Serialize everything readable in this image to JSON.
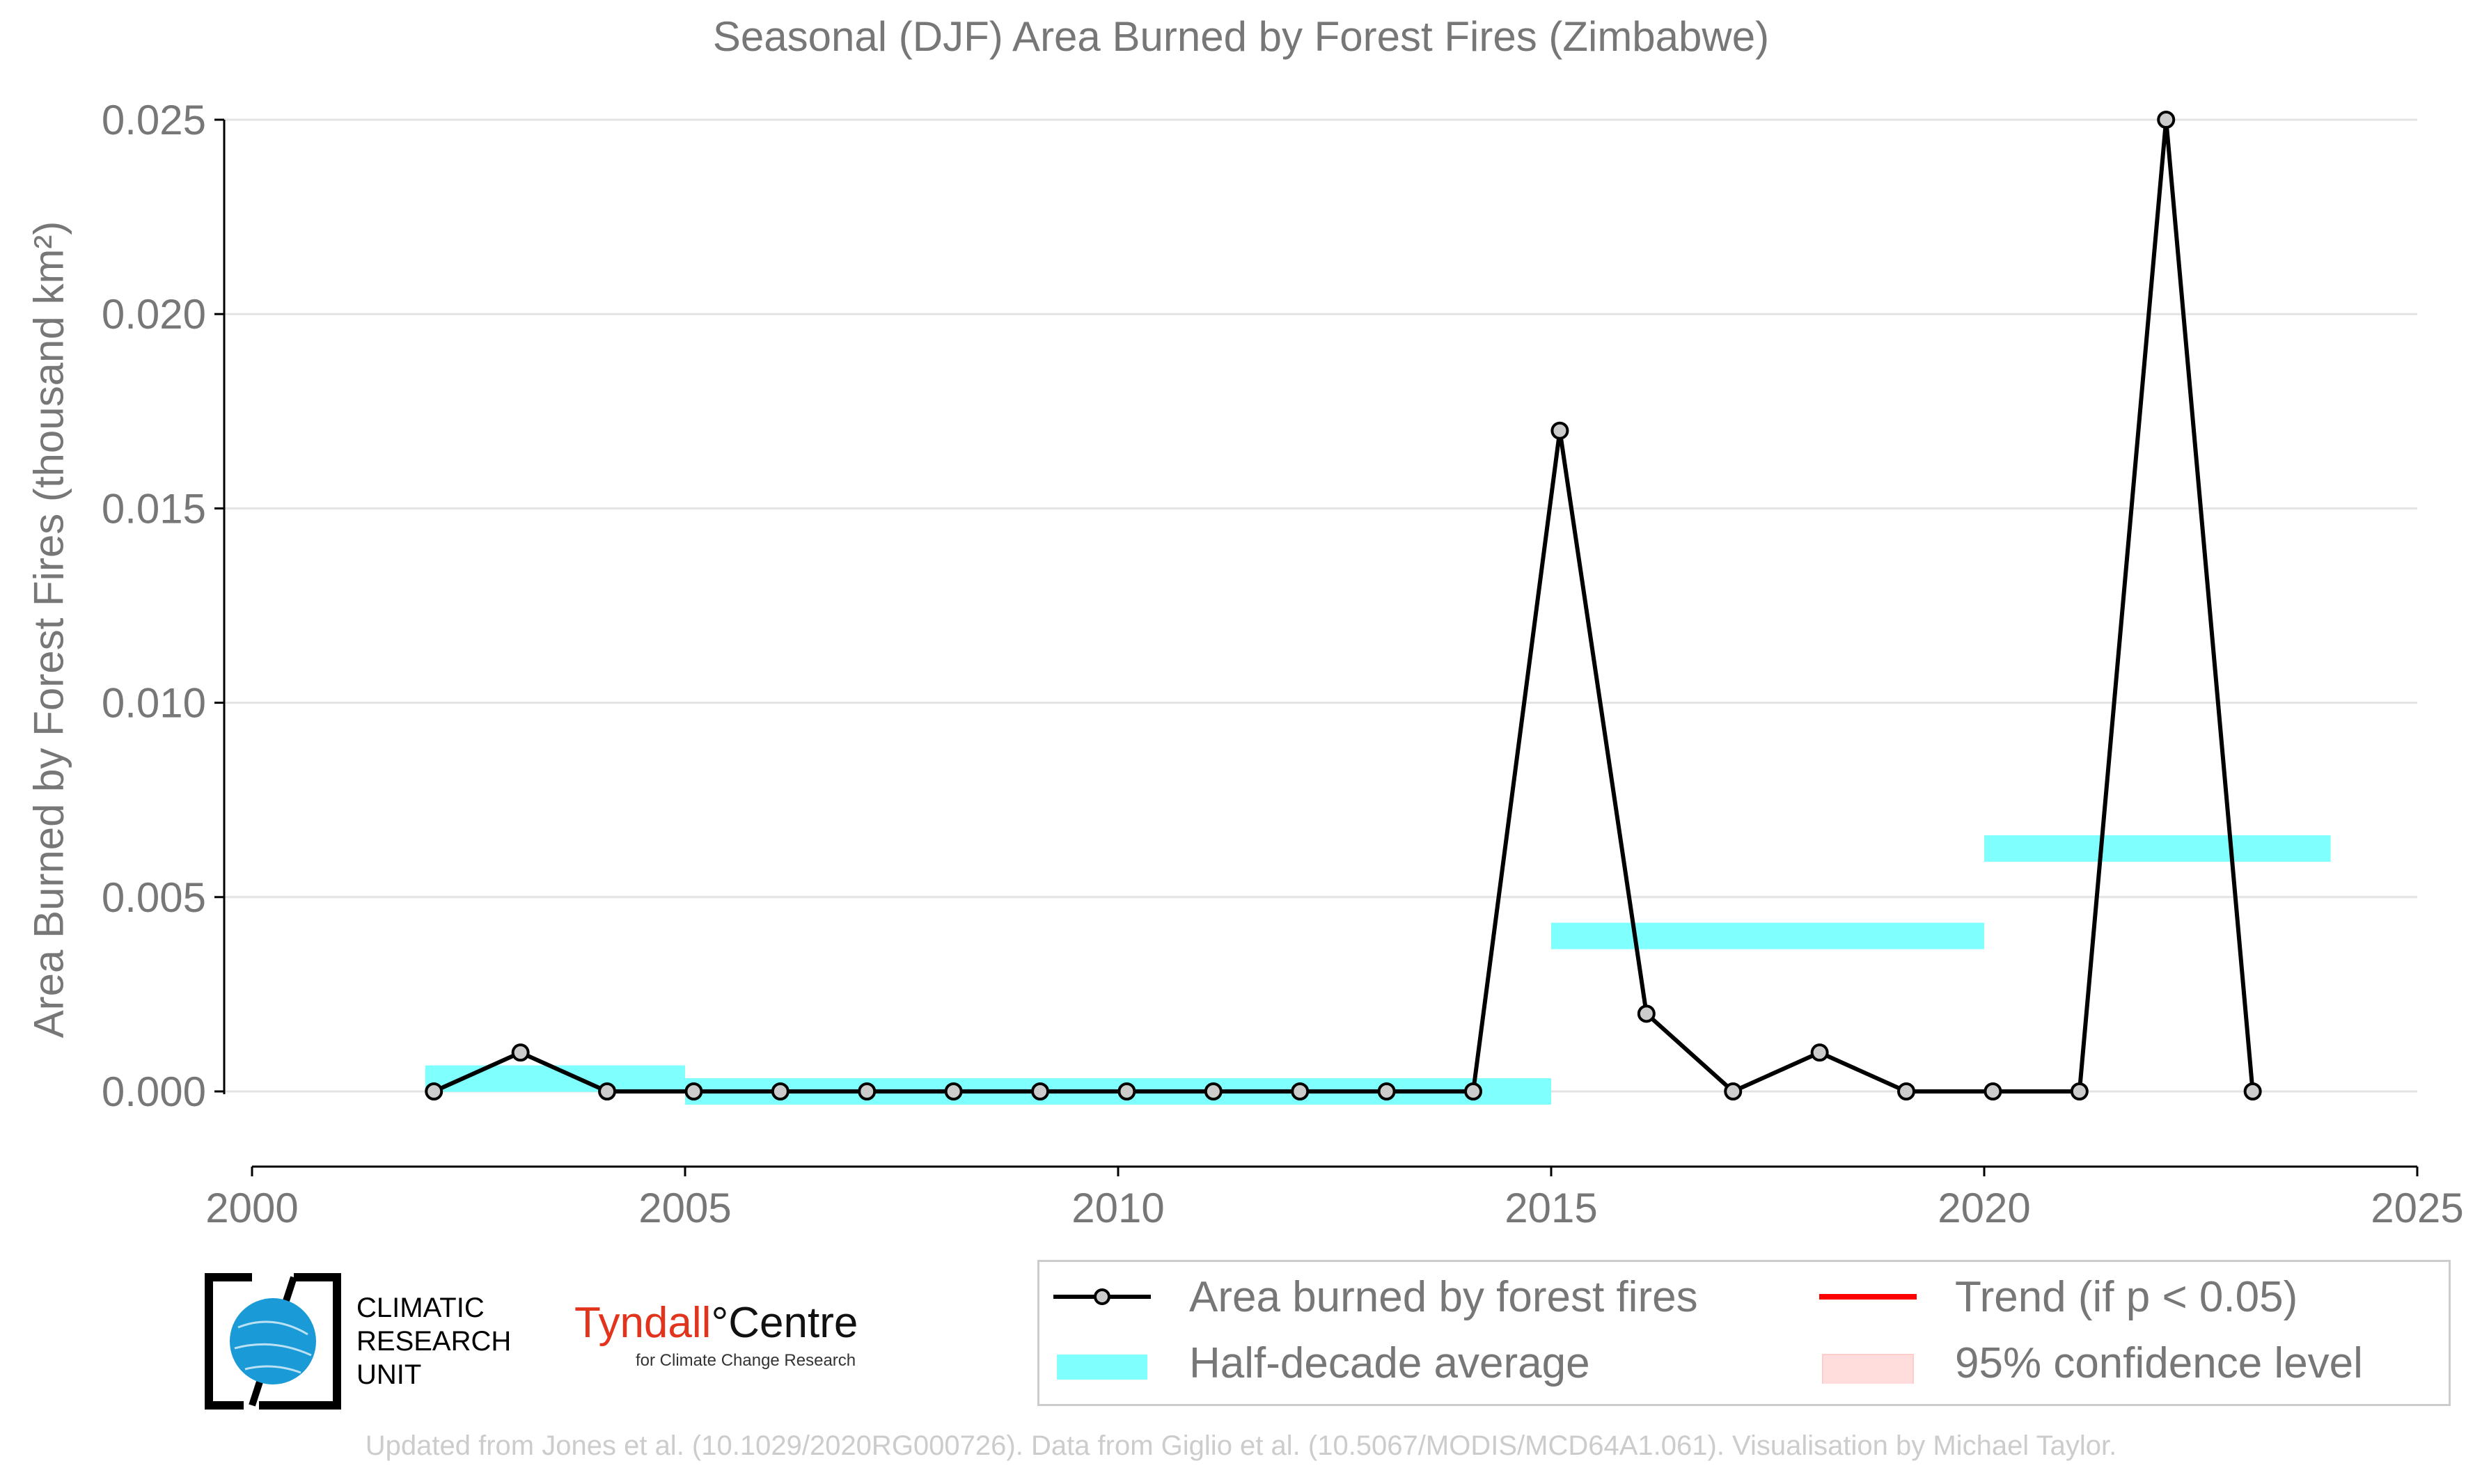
{
  "chart_data": {
    "type": "line",
    "title": "Seasonal (DJF) Area Burned by Forest Fires (Zimbabwe)",
    "ylabel": "Area Burned by Forest Fires (thousand km²)",
    "xlabel": "",
    "xlim": [
      2000,
      2025
    ],
    "ylim": [
      -0.0019,
      0.025
    ],
    "x_ticks": [
      2000,
      2005,
      2010,
      2015,
      2020,
      2025
    ],
    "x_tick_labels": [
      "2000",
      "2005",
      "2010",
      "2015",
      "2020",
      "2025"
    ],
    "y_ticks": [
      0.0,
      0.005,
      0.01,
      0.015,
      0.02,
      0.025
    ],
    "y_tick_labels": [
      "0.000",
      "0.005",
      "0.010",
      "0.015",
      "0.020",
      "0.025"
    ],
    "grid": "horizontal",
    "series": [
      {
        "name": "Area burned by forest fires",
        "color": "#000000",
        "marker_fill": "#cccccc",
        "x": [
          2002.1,
          2003.1,
          2004.1,
          2005.1,
          2006.1,
          2007.1,
          2008.1,
          2009.1,
          2010.1,
          2011.1,
          2012.1,
          2013.1,
          2014.1,
          2015.1,
          2016.1,
          2017.1,
          2018.1,
          2019.1,
          2020.1,
          2021.1,
          2022.1,
          2023.1
        ],
        "values": [
          0.0,
          0.001,
          0.0,
          0.0,
          0.0,
          0.0,
          0.0,
          0.0,
          0.0,
          0.0,
          0.0,
          0.0,
          0.0,
          0.017,
          0.002,
          0.0,
          0.001,
          0.0,
          0.0,
          0.0,
          0.025,
          0.0
        ]
      }
    ],
    "half_decade_average": {
      "name": "Half-decade average",
      "color": "#80ffff",
      "segments": [
        {
          "x_start": 2002,
          "x_end": 2005,
          "value": 0.00033
        },
        {
          "x_start": 2005,
          "x_end": 2015,
          "value": 0.0
        },
        {
          "x_start": 2015,
          "x_end": 2020,
          "value": 0.004
        },
        {
          "x_start": 2020,
          "x_end": 2024,
          "value": 0.00625
        }
      ]
    },
    "legend": {
      "position": "bottom-right",
      "entries": [
        {
          "label": "Area burned by forest fires",
          "symbol": "line-marker",
          "color": "#000000"
        },
        {
          "label": "Trend (if p < 0.05)",
          "symbol": "line",
          "color": "#ff0000"
        },
        {
          "label": "Half-decade average",
          "symbol": "band",
          "color": "#80ffff"
        },
        {
          "label": "95% confidence level",
          "symbol": "band",
          "color": "#ffdddd"
        }
      ]
    }
  },
  "logos": {
    "cru_lines": [
      "CLIMATIC",
      "RESEARCH",
      "UNIT"
    ],
    "tyndall_main": "Tyndall",
    "tyndall_degree": "°",
    "tyndall_centre": "Centre",
    "tyndall_sub": "for Climate Change Research"
  },
  "footer": "Updated from Jones et al. (10.1029/2020RG000726). Data from Giglio et al. (10.5067/MODIS/MCD64A1.061). Visualisation by Michael Taylor."
}
